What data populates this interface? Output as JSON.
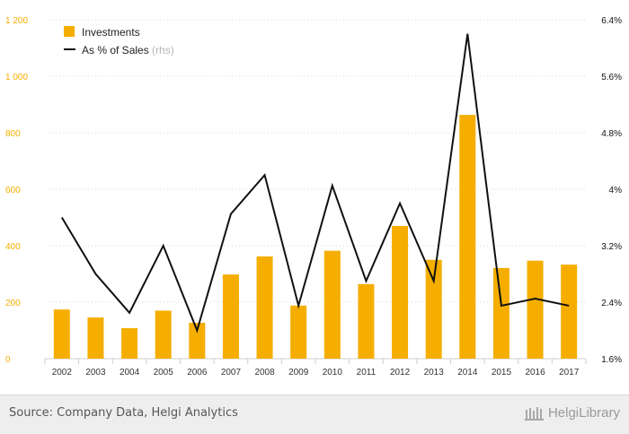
{
  "chart_data": {
    "type": "bar+line",
    "categories": [
      "2002",
      "2003",
      "2004",
      "2005",
      "2006",
      "2007",
      "2008",
      "2009",
      "2010",
      "2011",
      "2012",
      "2013",
      "2014",
      "2015",
      "2016",
      "2017"
    ],
    "series": [
      {
        "name": "Investments",
        "kind": "bar",
        "axis": "left",
        "color": "#f5ae00",
        "values": [
          174,
          146,
          108,
          170,
          127,
          298,
          362,
          188,
          382,
          264,
          470,
          350,
          863,
          321,
          347,
          333
        ]
      },
      {
        "name": "As % of Sales",
        "legend_suffix": "(rhs)",
        "kind": "line",
        "axis": "right",
        "color": "#111111",
        "values": [
          3.6,
          2.8,
          2.25,
          3.2,
          2.0,
          3.65,
          4.2,
          2.35,
          4.05,
          2.7,
          3.8,
          2.7,
          6.2,
          2.35,
          2.45,
          2.35
        ]
      }
    ],
    "left_axis": {
      "ylim": [
        0,
        1200
      ],
      "ticks": [
        0,
        200,
        400,
        600,
        800,
        1000,
        1200
      ],
      "tick_labels": [
        "0",
        "200",
        "400",
        "600",
        "800",
        "1 000",
        "1 200"
      ],
      "label_color": "#f5ae00"
    },
    "right_axis": {
      "ylim": [
        1.6,
        6.4
      ],
      "ticks": [
        1.6,
        2.4,
        3.2,
        4.0,
        4.8,
        5.6,
        6.4
      ],
      "tick_labels": [
        "1.6%",
        "2.4%",
        "3.2%",
        "4%",
        "4.8%",
        "5.6%",
        "6.4%"
      ],
      "label_color": "#111111"
    },
    "grid": true,
    "legend_position": "top-left"
  },
  "footer": {
    "source": "Source: Company Data, Helgi Analytics",
    "brand": "HelgiLibrary"
  }
}
